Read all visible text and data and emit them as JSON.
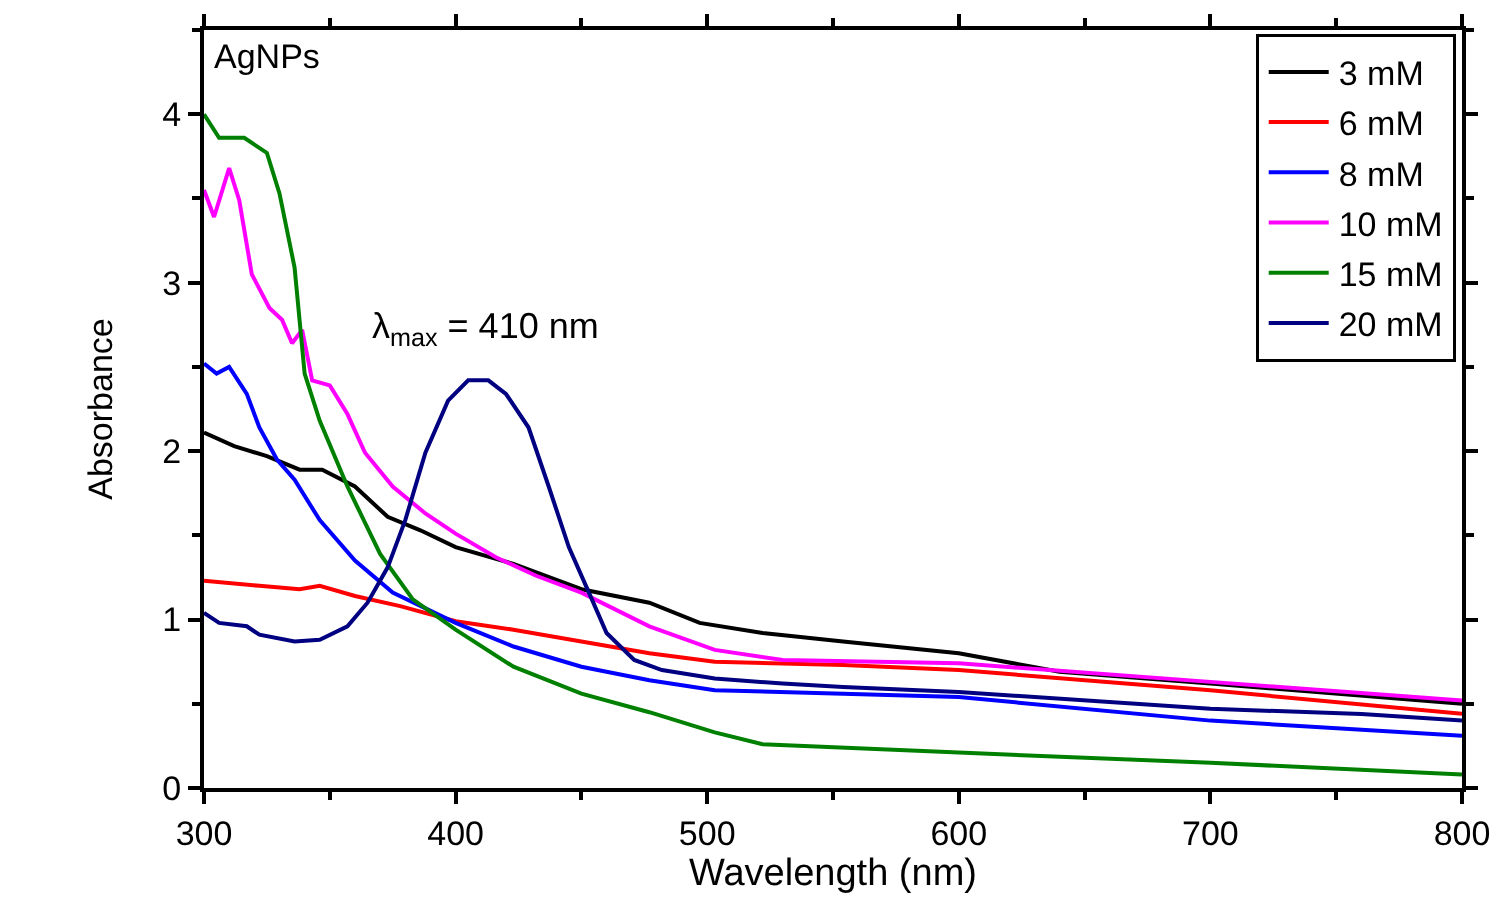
{
  "chart_data": {
    "type": "line",
    "xlabel": "Wavelength (nm)",
    "ylabel": "Absorbance",
    "xlim": [
      300,
      800
    ],
    "xticks": [
      300,
      400,
      500,
      600,
      700,
      800
    ],
    "ylim": [
      0,
      4.5
    ],
    "yticks": [
      0,
      1,
      2,
      3,
      4
    ],
    "grid": false,
    "legend": "top right",
    "marker": "none",
    "line_style": "solid",
    "annotations": [
      "AgNPs",
      "λ$_{max}$ = 410 nm"
    ],
    "series": [
      {
        "name": "3 mM",
        "color": "#000000",
        "x": [
          300,
          312,
          325,
          338,
          347,
          360,
          373,
          386,
          400,
          423,
          450,
          477,
          497,
          522,
          554,
          600,
          640,
          700,
          800
        ],
        "values": [
          2.11,
          2.03,
          1.97,
          1.89,
          1.89,
          1.79,
          1.61,
          1.53,
          1.43,
          1.33,
          1.18,
          1.1,
          0.98,
          0.92,
          0.87,
          0.8,
          0.69,
          0.62,
          0.5
        ]
      },
      {
        "name": "6 mM",
        "color": "#ff0000",
        "x": [
          300,
          322,
          338,
          346,
          360,
          378,
          400,
          423,
          450,
          477,
          503,
          554,
          600,
          700,
          800
        ],
        "values": [
          1.23,
          1.2,
          1.18,
          1.2,
          1.14,
          1.08,
          0.99,
          0.94,
          0.87,
          0.8,
          0.75,
          0.73,
          0.7,
          0.58,
          0.44
        ]
      },
      {
        "name": "8 mM",
        "color": "#0000ff",
        "x": [
          300,
          305,
          310,
          317,
          322,
          329,
          336,
          346,
          360,
          375,
          400,
          423,
          450,
          477,
          503,
          554,
          600,
          700,
          800
        ],
        "values": [
          2.52,
          2.46,
          2.5,
          2.34,
          2.14,
          1.95,
          1.83,
          1.59,
          1.35,
          1.16,
          0.98,
          0.84,
          0.72,
          0.64,
          0.58,
          0.56,
          0.54,
          0.4,
          0.31
        ]
      },
      {
        "name": "10 mM",
        "color": "#ff00ff",
        "x": [
          300,
          304,
          310,
          314,
          319,
          326,
          331,
          335,
          339,
          343,
          350,
          357,
          364,
          375,
          388,
          400,
          416,
          432,
          450,
          477,
          503,
          530,
          600,
          700,
          800
        ],
        "values": [
          3.55,
          3.39,
          3.68,
          3.49,
          3.05,
          2.85,
          2.78,
          2.64,
          2.72,
          2.42,
          2.39,
          2.22,
          1.99,
          1.79,
          1.63,
          1.51,
          1.37,
          1.26,
          1.16,
          0.96,
          0.82,
          0.76,
          0.74,
          0.63,
          0.52
        ]
      },
      {
        "name": "15 mM",
        "color": "#008000",
        "x": [
          300,
          306,
          316,
          325,
          330,
          336,
          340,
          346,
          357,
          370,
          383,
          400,
          423,
          450,
          477,
          503,
          522,
          600,
          700,
          800
        ],
        "values": [
          4.0,
          3.86,
          3.86,
          3.77,
          3.53,
          3.09,
          2.46,
          2.18,
          1.79,
          1.39,
          1.12,
          0.94,
          0.72,
          0.56,
          0.45,
          0.33,
          0.26,
          0.21,
          0.15,
          0.08
        ]
      },
      {
        "name": "20 mM",
        "color": "#000080",
        "x": [
          300,
          306,
          317,
          322,
          336,
          346,
          357,
          365,
          373,
          380,
          388,
          397,
          405,
          413,
          420,
          429,
          437,
          445,
          453,
          460,
          471,
          482,
          503,
          530,
          554,
          600,
          700,
          760,
          800
        ],
        "values": [
          1.04,
          0.98,
          0.96,
          0.91,
          0.87,
          0.88,
          0.96,
          1.1,
          1.31,
          1.59,
          1.99,
          2.3,
          2.42,
          2.42,
          2.34,
          2.14,
          1.79,
          1.43,
          1.16,
          0.92,
          0.76,
          0.7,
          0.65,
          0.62,
          0.6,
          0.57,
          0.47,
          0.44,
          0.4
        ]
      }
    ]
  }
}
